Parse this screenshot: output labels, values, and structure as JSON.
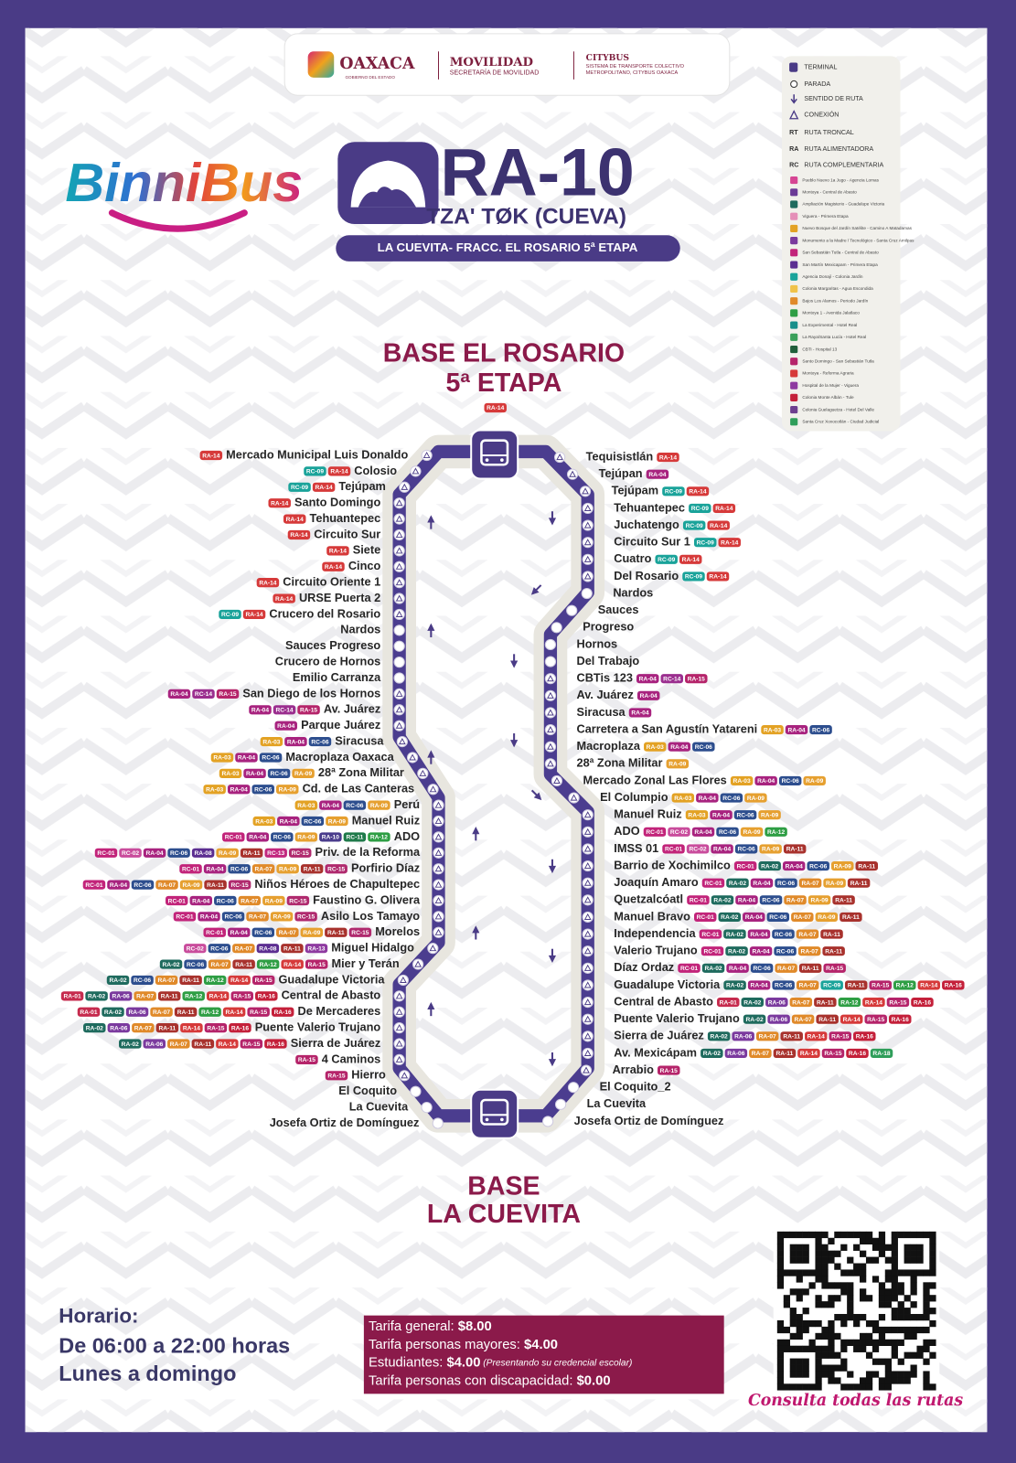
{
  "header": {
    "oaxaca": "OAXACA",
    "oaxaca_sub": "GOBIERNO DEL ESTADO",
    "movilidad": "MOVILIDAD",
    "movilidad_sub": "SECRETARÍA DE MOVILIDAD",
    "citybus": "CITYBUS",
    "citybus_sub": [
      "SISTEMA DE TRANSPORTE COLECTIVO",
      "METROPOLITANO, CITYBUS OAXACA"
    ]
  },
  "brand": "BinniBus",
  "route": {
    "code": "RA-10",
    "name": "TZA' TØK (CUEVA)",
    "path": "LA CUEVITA- FRACC. EL ROSARIO 5ª ETAPA"
  },
  "legend": {
    "symbols": [
      "TERMINAL",
      "PARADA",
      "SENTIDO DE RUTA",
      "CONEXIÓN"
    ],
    "types": [
      {
        "abbr": "RT",
        "label": "RUTA TRONCAL"
      },
      {
        "abbr": "RA",
        "label": "RUTA ALIMENTADORA"
      },
      {
        "abbr": "RC",
        "label": "RUTA COMPLEMENTARIA"
      }
    ],
    "routes": [
      {
        "name": "Pueblo Nuevo 1a Jugo - Agencia Lomas",
        "color": "#d64593"
      },
      {
        "name": "Montoya - Central de Abasto",
        "color": "#6b3a96"
      },
      {
        "name": "Ampliación Magisterio - Guadalupe Victoria",
        "color": "#1f6b5e"
      },
      {
        "name": "Viguera - Primera Etapa",
        "color": "#e58fb8"
      },
      {
        "name": "Nuevo Bosque del Jardín Satélite - Camino A Matadamas",
        "color": "#e3a224"
      },
      {
        "name": "Monumento a la Madre / Tecnológico - Santa Cruz Amilpas",
        "color": "#7b3a9e"
      },
      {
        "name": "San Sebastián Tutla - Central de Abasto",
        "color": "#c2247a"
      },
      {
        "name": "San Martín Mexicapam - Primera Etapa",
        "color": "#5c2e91"
      },
      {
        "name": "Agencia Donají - Colonia Jardín",
        "color": "#1aa39a"
      },
      {
        "name": "Colonia Margaritas - Agua Escondida",
        "color": "#f0c24a"
      },
      {
        "name": "Bajos Los Alamos - Periodo Jardín",
        "color": "#e08a2a"
      },
      {
        "name": "Montoya 1 - Avenida Jalatlaco",
        "color": "#2e9e44"
      },
      {
        "name": "La Experimental - Hotel Real",
        "color": "#178f8a"
      },
      {
        "name": "La Raya/Santa Lucía - Hotel Real",
        "color": "#3aa05a"
      },
      {
        "name": "CBTi - Hospital 13",
        "color": "#1f5e3a"
      },
      {
        "name": "Santo Domingo - San Sebastián Tutla",
        "color": "#b5246a"
      },
      {
        "name": "Montoya - Reforma Agraria",
        "color": "#d63a3a"
      },
      {
        "name": "Hospital de la Mujer - Viguera",
        "color": "#8e3aa0"
      },
      {
        "name": "Colonia Monte Albán - Tule",
        "color": "#c4203a"
      },
      {
        "name": "Colonia Guelaguetza - Hotel Del Valle",
        "color": "#6d3f8f"
      },
      {
        "name": "Santa Cruz Xoxocotlán - Ciudad Judicial",
        "color": "#2f9e5a"
      }
    ]
  },
  "base_top": {
    "lines": [
      "BASE EL ROSARIO",
      "5ª ETAPA"
    ],
    "connections": [
      "RA-14"
    ]
  },
  "base_bottom": {
    "lines": [
      "BASE",
      "LA CUEVITA"
    ]
  },
  "stops_left": [
    {
      "name": "Mercado Municipal Luis Donaldo",
      "connections": [
        "RA-14"
      ]
    },
    {
      "name": "Colosio",
      "connections": [
        "RC-09",
        "RA-14"
      ]
    },
    {
      "name": "Tejúpam",
      "connections": [
        "RC-09",
        "RA-14"
      ]
    },
    {
      "name": "Santo Domingo",
      "connections": [
        "RA-14"
      ]
    },
    {
      "name": "Tehuantepec",
      "connections": [
        "RA-14"
      ]
    },
    {
      "name": "Circuito Sur",
      "connections": [
        "RA-14"
      ]
    },
    {
      "name": "Siete",
      "connections": [
        "RA-14"
      ]
    },
    {
      "name": "Cinco",
      "connections": [
        "RA-14"
      ]
    },
    {
      "name": "Circuito Oriente 1",
      "connections": [
        "RA-14"
      ]
    },
    {
      "name": "URSE Puerta 2",
      "connections": [
        "RA-14"
      ]
    },
    {
      "name": "Crucero del Rosario",
      "connections": [
        "RC-09",
        "RA-14"
      ]
    },
    {
      "name": "Nardos",
      "connections": []
    },
    {
      "name": "Sauces Progreso",
      "connections": []
    },
    {
      "name": "Crucero de Hornos",
      "connections": []
    },
    {
      "name": "Emilio Carranza",
      "connections": []
    },
    {
      "name": "San Diego de los Hornos",
      "connections": [
        "RA-04",
        "RC-14",
        "RA-15"
      ]
    },
    {
      "name": "Av. Juárez",
      "connections": [
        "RA-04",
        "RC-14",
        "RA-15"
      ]
    },
    {
      "name": "Parque Juárez",
      "connections": [
        "RA-04"
      ]
    },
    {
      "name": "Siracusa",
      "connections": [
        "RA-03",
        "RA-04",
        "RC-06"
      ]
    },
    {
      "name": "Macroplaza Oaxaca",
      "connections": [
        "RA-03",
        "RA-04",
        "RC-06"
      ]
    },
    {
      "name": "28ª Zona Militar",
      "connections": [
        "RA-03",
        "RA-04",
        "RC-06",
        "RA-09"
      ]
    },
    {
      "name": "Cd. de Las Canteras",
      "connections": [
        "RA-03",
        "RA-04",
        "RC-06",
        "RA-09"
      ]
    },
    {
      "name": "Perú",
      "connections": [
        "RA-03",
        "RA-04",
        "RC-06",
        "RA-09"
      ]
    },
    {
      "name": "Manuel Ruiz",
      "connections": [
        "RA-03",
        "RA-04",
        "RC-06",
        "RA-09"
      ]
    },
    {
      "name": "ADO",
      "connections": [
        "RC-01",
        "RA-04",
        "RC-06",
        "RA-09",
        "RA-10",
        "RC-11",
        "RA-12"
      ]
    },
    {
      "name": "Priv. de la Reforma",
      "connections": [
        "RC-01",
        "RC-02",
        "RA-04",
        "RC-06",
        "RA-08",
        "RA-09",
        "RA-11",
        "RC-13",
        "RC-15"
      ]
    },
    {
      "name": "Porfirio Díaz",
      "connections": [
        "RC-01",
        "RA-04",
        "RC-06",
        "RA-07",
        "RA-09",
        "RA-11",
        "RC-15"
      ]
    },
    {
      "name": "Niños Héroes de Chapultepec",
      "connections": [
        "RC-01",
        "RA-04",
        "RC-06",
        "RA-07",
        "RA-09",
        "RA-11",
        "RC-15"
      ]
    },
    {
      "name": "Faustino G. Olivera",
      "connections": [
        "RC-01",
        "RA-04",
        "RC-06",
        "RA-07",
        "RA-09",
        "RC-15"
      ]
    },
    {
      "name": "Asilo Los Tamayo",
      "connections": [
        "RC-01",
        "RA-04",
        "RC-06",
        "RA-07",
        "RA-09",
        "RC-15"
      ]
    },
    {
      "name": "Morelos",
      "connections": [
        "RC-01",
        "RA-04",
        "RC-06",
        "RA-07",
        "RA-09",
        "RA-11",
        "RC-15"
      ]
    },
    {
      "name": "Miguel Hidalgo",
      "connections": [
        "RC-02",
        "RC-06",
        "RA-07",
        "RA-08",
        "RA-11",
        "RA-13"
      ]
    },
    {
      "name": "Mier y Terán",
      "connections": [
        "RA-02",
        "RC-06",
        "RA-07",
        "RA-11",
        "RA-12",
        "RA-14",
        "RA-15"
      ]
    },
    {
      "name": "Guadalupe Victoria",
      "connections": [
        "RA-02",
        "RC-06",
        "RA-07",
        "RA-11",
        "RA-12",
        "RA-14",
        "RA-15"
      ]
    },
    {
      "name": "Central de Abasto",
      "connections": [
        "RA-01",
        "RA-02",
        "RA-06",
        "RA-07",
        "RA-11",
        "RA-12",
        "RA-14",
        "RA-15",
        "RA-16"
      ]
    },
    {
      "name": "De Mercaderes",
      "connections": [
        "RA-01",
        "RA-02",
        "RA-06",
        "RA-07",
        "RA-11",
        "RA-12",
        "RA-14",
        "RA-15",
        "RA-16"
      ]
    },
    {
      "name": "Puente Valerio Trujano",
      "connections": [
        "RA-02",
        "RA-06",
        "RA-07",
        "RA-11",
        "RA-14",
        "RA-15",
        "RA-16"
      ]
    },
    {
      "name": "Sierra de Juárez",
      "connections": [
        "RA-02",
        "RA-06",
        "RA-07",
        "RA-11",
        "RA-14",
        "RA-15",
        "RA-16"
      ]
    },
    {
      "name": "4 Caminos",
      "connections": [
        "RA-15"
      ]
    },
    {
      "name": "Hierro",
      "connections": [
        "RA-15"
      ]
    },
    {
      "name": "El Coquito",
      "connections": []
    },
    {
      "name": "La Cuevita",
      "connections": []
    },
    {
      "name": "Josefa Ortiz de Domínguez",
      "connections": []
    }
  ],
  "stops_right": [
    {
      "name": "Tequisistlán",
      "connections": [
        "RA-14"
      ]
    },
    {
      "name": "Tejúpan",
      "connections": [
        "RA-04"
      ]
    },
    {
      "name": "Tejúpam",
      "connections": [
        "RC-09",
        "RA-14"
      ]
    },
    {
      "name": "Tehuantepec",
      "connections": [
        "RC-09",
        "RA-14"
      ]
    },
    {
      "name": "Juchatengo",
      "connections": [
        "RC-09",
        "RA-14"
      ]
    },
    {
      "name": "Circuito Sur 1",
      "connections": [
        "RC-09",
        "RA-14"
      ]
    },
    {
      "name": "Cuatro",
      "connections": [
        "RC-09",
        "RA-14"
      ]
    },
    {
      "name": "Del Rosario",
      "connections": [
        "RC-09",
        "RA-14"
      ]
    },
    {
      "name": "Nardos",
      "connections": []
    },
    {
      "name": "Sauces",
      "connections": []
    },
    {
      "name": "Progreso",
      "connections": []
    },
    {
      "name": "Hornos",
      "connections": []
    },
    {
      "name": "Del Trabajo",
      "connections": []
    },
    {
      "name": "CBTis 123",
      "connections": [
        "RA-04",
        "RC-14",
        "RA-15"
      ]
    },
    {
      "name": "Av. Juárez",
      "connections": [
        "RA-04"
      ]
    },
    {
      "name": "Siracusa",
      "connections": [
        "RA-04"
      ]
    },
    {
      "name": "Carretera a San Agustín Yatareni",
      "connections": [
        "RA-03",
        "RA-04",
        "RC-06"
      ]
    },
    {
      "name": "Macroplaza",
      "connections": [
        "RA-03",
        "RA-04",
        "RC-06"
      ]
    },
    {
      "name": "28ª Zona Militar",
      "connections": [
        "RA-09"
      ]
    },
    {
      "name": "Mercado Zonal Las Flores",
      "connections": [
        "RA-03",
        "RA-04",
        "RC-06",
        "RA-09"
      ]
    },
    {
      "name": "El Columpio",
      "connections": [
        "RA-03",
        "RA-04",
        "RC-06",
        "RA-09"
      ]
    },
    {
      "name": "Manuel Ruiz",
      "connections": [
        "RA-03",
        "RA-04",
        "RC-06",
        "RA-09"
      ]
    },
    {
      "name": "ADO",
      "connections": [
        "RC-01",
        "RC-02",
        "RA-04",
        "RC-06",
        "RA-09",
        "RA-12"
      ]
    },
    {
      "name": "IMSS 01",
      "connections": [
        "RC-01",
        "RC-02",
        "RA-04",
        "RC-06",
        "RA-09",
        "RA-11"
      ]
    },
    {
      "name": "Barrio de Xochimilco",
      "connections": [
        "RC-01",
        "RA-02",
        "RA-04",
        "RC-06",
        "RA-09",
        "RA-11"
      ]
    },
    {
      "name": "Joaquín Amaro",
      "connections": [
        "RC-01",
        "RA-02",
        "RA-04",
        "RC-06",
        "RA-07",
        "RA-09",
        "RA-11"
      ]
    },
    {
      "name": "Quetzalcóatl",
      "connections": [
        "RC-01",
        "RA-02",
        "RA-04",
        "RC-06",
        "RA-07",
        "RA-09",
        "RA-11"
      ]
    },
    {
      "name": "Manuel Bravo",
      "connections": [
        "RC-01",
        "RA-02",
        "RA-04",
        "RC-06",
        "RA-07",
        "RA-09",
        "RA-11"
      ]
    },
    {
      "name": "Independencia",
      "connections": [
        "RC-01",
        "RA-02",
        "RA-04",
        "RC-06",
        "RA-07",
        "RA-11"
      ]
    },
    {
      "name": "Valerio Trujano",
      "connections": [
        "RC-01",
        "RA-02",
        "RA-04",
        "RC-06",
        "RA-07",
        "RA-11"
      ]
    },
    {
      "name": "Díaz Ordaz",
      "connections": [
        "RC-01",
        "RA-02",
        "RA-04",
        "RC-06",
        "RA-07",
        "RA-11",
        "RA-15"
      ]
    },
    {
      "name": "Guadalupe Victoria",
      "connections": [
        "RA-02",
        "RA-04",
        "RC-06",
        "RA-07",
        "RC-09",
        "RA-11",
        "RA-15",
        "RA-12",
        "RA-14",
        "RA-16"
      ]
    },
    {
      "name": "Central de Abasto",
      "connections": [
        "RA-01",
        "RA-02",
        "RA-06",
        "RA-07",
        "RA-11",
        "RA-12",
        "RA-14",
        "RA-15",
        "RA-16"
      ]
    },
    {
      "name": "Puente Valerio Trujano",
      "connections": [
        "RA-02",
        "RA-06",
        "RA-07",
        "RA-11",
        "RA-14",
        "RA-15",
        "RA-16"
      ]
    },
    {
      "name": "Sierra de Juárez",
      "connections": [
        "RA-02",
        "RA-06",
        "RA-07",
        "RA-11",
        "RA-14",
        "RA-15",
        "RA-16"
      ]
    },
    {
      "name": "Av. Mexicápam",
      "connections": [
        "RA-02",
        "RA-06",
        "RA-07",
        "RA-11",
        "RA-14",
        "RA-15",
        "RA-16",
        "RA-18"
      ]
    },
    {
      "name": "Arrabio",
      "connections": [
        "RA-15"
      ]
    },
    {
      "name": "El Coquito_2",
      "connections": []
    },
    {
      "name": "La Cuevita",
      "connections": []
    },
    {
      "name": "Josefa Ortiz de Domínguez",
      "connections": []
    }
  ],
  "badge_colors": {
    "RA-01": "#c62b4e",
    "RA-02": "#1f6b5e",
    "RC-01": "#c2247a",
    "RC-02": "#c94c9c",
    "RA-03": "#e3a224",
    "RA-04": "#a8237f",
    "RA-06": "#7b3a9e",
    "RC-06": "#2d4e8e",
    "RA-07": "#e08a2a",
    "RA-08": "#5c2e91",
    "RA-09": "#e6a030",
    "RC-09": "#1aa39a",
    "RA-10": "#4a3c8c",
    "RA-11": "#a8322d",
    "RC-11": "#1f7a4a",
    "RA-12": "#2e9e44",
    "RA-13": "#8e3aa0",
    "RC-13": "#c2287e",
    "RA-14": "#d63a3a",
    "RC-14": "#9b2f8f",
    "RA-15": "#b5246a",
    "RC-15": "#b02a6e",
    "RA-16": "#c4203a",
    "RA-18": "#2f9e5a"
  },
  "schedule": {
    "title": "Horario:",
    "hours": "De 06:00 a 22:00 horas",
    "days": "Lunes a domingo"
  },
  "fares": [
    {
      "label": "Tarifa general: ",
      "value": "$8.00"
    },
    {
      "label": "Tarifa personas mayores: ",
      "value": "$4.00"
    },
    {
      "label": "Estudiantes: ",
      "value": "$4.00",
      "note": " (Presentando su credencial escolar)"
    },
    {
      "label": "Tarifa personas con discapacidad: ",
      "value": "$0.00"
    }
  ],
  "qr_caption": "Consulta todas las rutas"
}
